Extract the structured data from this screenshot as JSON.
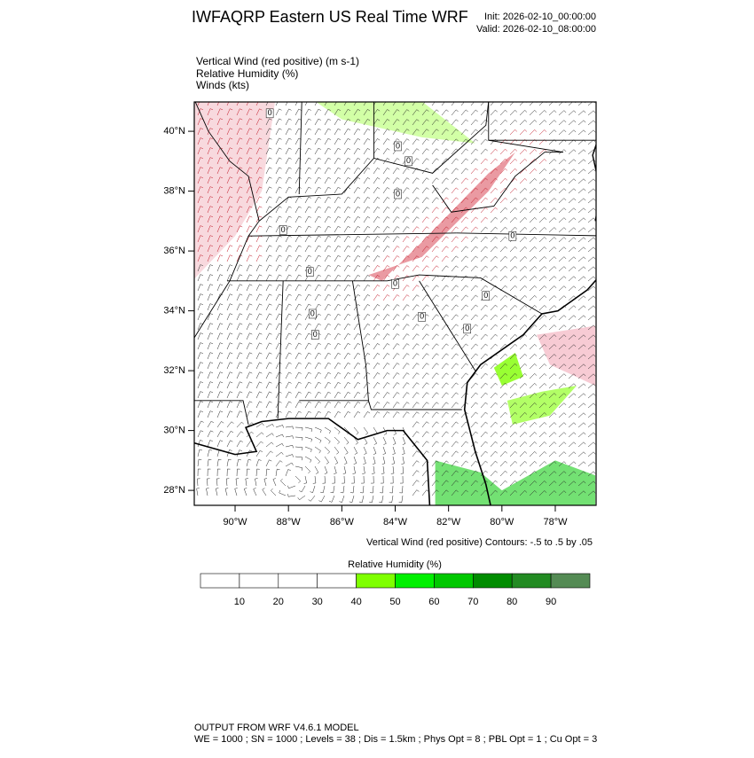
{
  "header": {
    "title": "IWFAQRP Eastern US Real Time WRF",
    "init": "Init: 2026-02-10_00:00:00",
    "valid": "Valid: 2026-02-10_08:00:00"
  },
  "fields": [
    "Vertical Wind (red positive)   (m s-1)",
    "Relative Humidity   (%)",
    "Winds   (kts)"
  ],
  "map": {
    "xlim": [
      -91.53,
      -76.47
    ],
    "ylim": [
      27.5,
      40.98
    ],
    "xticks": [
      {
        "value": -90,
        "label": "90°W"
      },
      {
        "value": -88,
        "label": "88°W"
      },
      {
        "value": -86,
        "label": "86°W"
      },
      {
        "value": -84,
        "label": "84°W"
      },
      {
        "value": -82,
        "label": "82°W"
      },
      {
        "value": -80,
        "label": "80°W"
      },
      {
        "value": -78,
        "label": "78°W"
      }
    ],
    "yticks": [
      {
        "value": 28,
        "label": "28°N"
      },
      {
        "value": 30,
        "label": "30°N"
      },
      {
        "value": 32,
        "label": "32°N"
      },
      {
        "value": 34,
        "label": "34°N"
      },
      {
        "value": 36,
        "label": "36°N"
      },
      {
        "value": 38,
        "label": "38°N"
      },
      {
        "value": 40,
        "label": "40°N"
      }
    ],
    "contour_labels": [
      "0",
      "0",
      "0",
      "0",
      "0",
      "0",
      "0",
      "0",
      "0",
      "0",
      "0",
      "0",
      "0"
    ]
  },
  "caption": "Vertical Wind (red positive) Contours: -.5 to .5 by .05",
  "colorbar": {
    "title": "Relative Humidity  (%)",
    "levels": [
      10,
      20,
      30,
      40,
      50,
      60,
      70,
      80,
      90
    ],
    "colors": [
      "#ffffff",
      "#ffffff",
      "#ffffff",
      "#ffffff",
      "#7fff00",
      "#00f000",
      "#00c800",
      "#008c00",
      "#228b22",
      "#548b54"
    ]
  },
  "footer": [
    "OUTPUT FROM WRF V4.6.1 MODEL",
    "WE = 1000 ; SN = 1000 ; Levels = 38 ; Dis = 1.5km ; Phys Opt = 8 ; PBL Opt = 1 ; Cu Opt = 3"
  ]
}
